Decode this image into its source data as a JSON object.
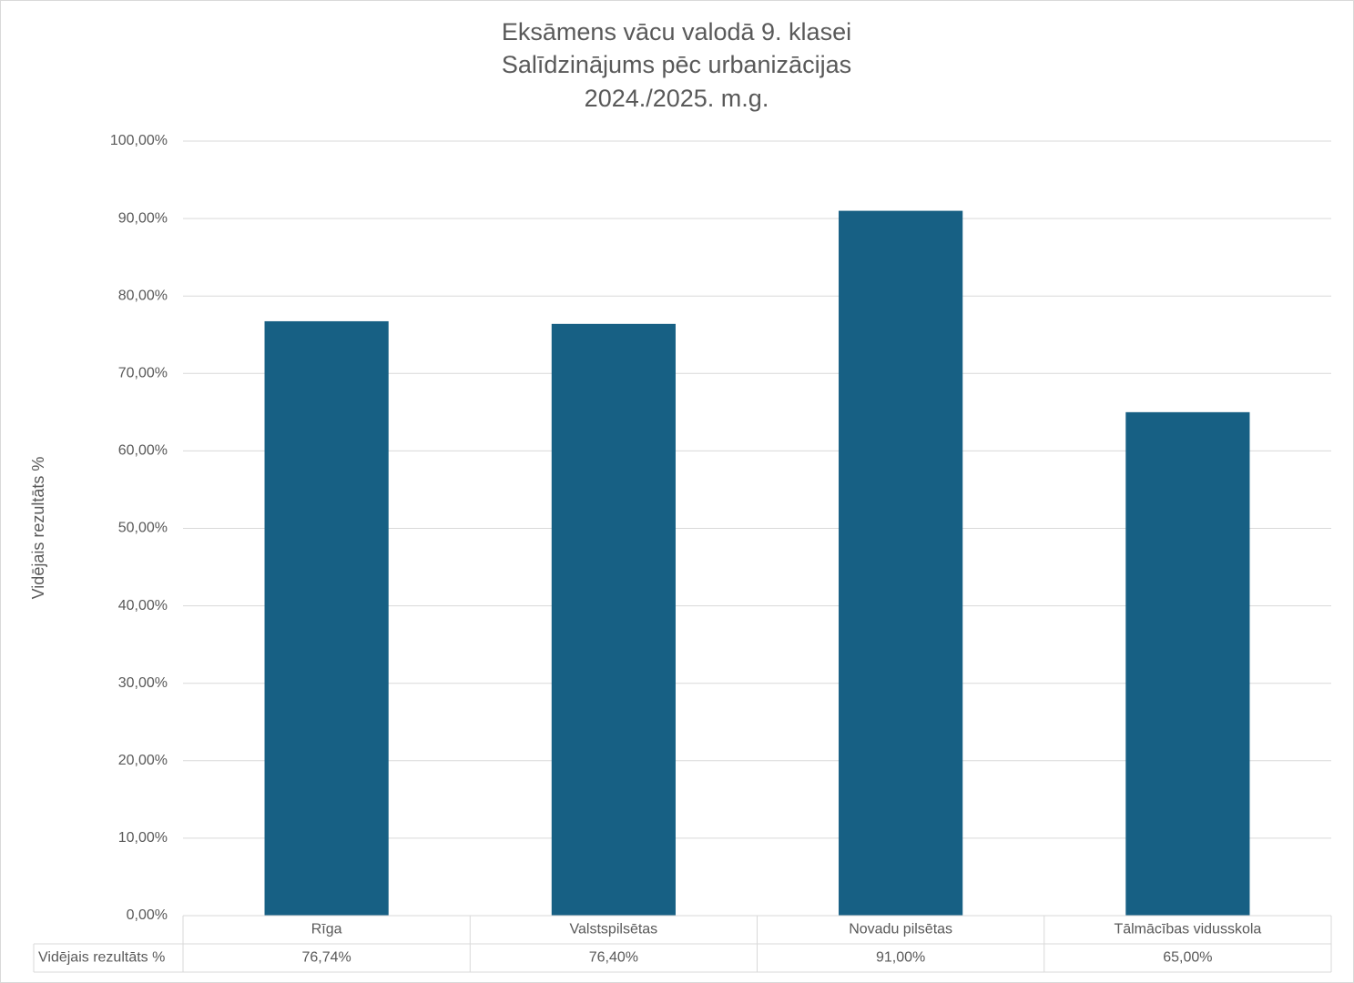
{
  "chart_data": {
    "type": "bar",
    "title": [
      "Eksāmens vācu valodā 9. klasei",
      "Salīdzinājums pēc urbanizācijas",
      "2024./2025. m.g."
    ],
    "ylabel": "Vidējais rezultāts %",
    "categories": [
      "Rīga",
      "Valstspilsētas",
      "Novadu pilsētas",
      "Tālmācības vidusskola"
    ],
    "series": [
      {
        "name": "Vidējais rezultāts %",
        "color": "#176084",
        "values": [
          76.74,
          76.4,
          91,
          65
        ],
        "value_labels": [
          "76,74%",
          "76,40%",
          "91,00%",
          "65,00%"
        ]
      }
    ],
    "ylim": [
      0,
      100
    ],
    "yticks": [
      {
        "value": 0,
        "label": "0,00%"
      },
      {
        "value": 10,
        "label": "10,00%"
      },
      {
        "value": 20,
        "label": "20,00%"
      },
      {
        "value": 30,
        "label": "30,00%"
      },
      {
        "value": 40,
        "label": "40,00%"
      },
      {
        "value": 50,
        "label": "50,00%"
      },
      {
        "value": 60,
        "label": "60,00%"
      },
      {
        "value": 70,
        "label": "70,00%"
      },
      {
        "value": 80,
        "label": "80,00%"
      },
      {
        "value": 90,
        "label": "90,00%"
      },
      {
        "value": 100,
        "label": "100,00%"
      }
    ],
    "grid": true,
    "data_table": true
  }
}
